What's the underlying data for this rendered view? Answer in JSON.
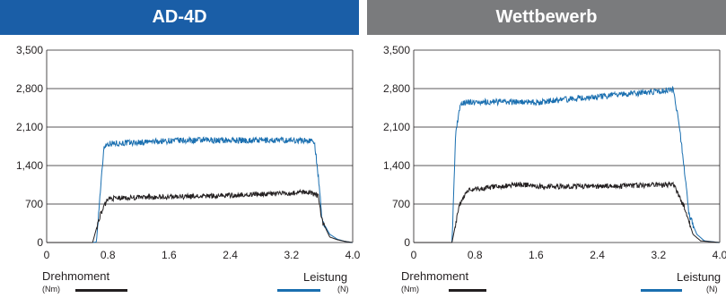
{
  "colors": {
    "left_header": "#1a5ea7",
    "right_header": "#7a7b7d",
    "torque": "#231f20",
    "force": "#1a6fb0",
    "grid": "#231f20"
  },
  "legend": {
    "torque_label": "Drehmoment",
    "torque_unit": "(Nm)",
    "force_label": "Leistung",
    "force_unit": "(N)"
  },
  "chart_data": [
    {
      "type": "line",
      "title": "AD-4D",
      "xlim": [
        0,
        4.0
      ],
      "ylim": [
        0,
        3500
      ],
      "x_ticks": [
        "0",
        "0.8",
        "1.6",
        "2.4",
        "3.2",
        "4.0"
      ],
      "y_ticks": [
        "0",
        "700",
        "1,400",
        "2,100",
        "2,800",
        "3,500"
      ],
      "grid": "horizontal",
      "series": [
        {
          "name": "Leistung",
          "unit": "(N)",
          "color": "#1a6fb0",
          "x": [
            0,
            0.6,
            0.65,
            0.7,
            0.75,
            0.8,
            1.2,
            1.6,
            2.0,
            2.4,
            2.8,
            3.2,
            3.5,
            3.55,
            3.6,
            3.7,
            3.8,
            3.9,
            4.0
          ],
          "y": [
            0,
            0,
            10,
            900,
            1750,
            1800,
            1820,
            1850,
            1860,
            1860,
            1860,
            1860,
            1850,
            1200,
            400,
            150,
            60,
            20,
            0
          ]
        },
        {
          "name": "Drehmoment",
          "unit": "(Nm)",
          "color": "#231f20",
          "x": [
            0,
            0.6,
            0.7,
            0.8,
            1.2,
            1.6,
            2.0,
            2.4,
            2.8,
            3.2,
            3.4,
            3.55,
            3.6,
            3.7,
            3.8,
            3.9,
            4.0
          ],
          "y": [
            0,
            0,
            500,
            800,
            820,
            830,
            840,
            860,
            880,
            900,
            920,
            860,
            400,
            100,
            50,
            20,
            0
          ]
        }
      ]
    },
    {
      "type": "line",
      "title": "Wettbewerb",
      "xlim": [
        0,
        4.0
      ],
      "ylim": [
        0,
        3500
      ],
      "x_ticks": [
        "0",
        "0.8",
        "1.6",
        "2.4",
        "3.2",
        "4.0"
      ],
      "y_ticks": [
        "0",
        "700",
        "1,400",
        "2,100",
        "2,800",
        "3,500"
      ],
      "grid": "horizontal",
      "series": [
        {
          "name": "Leistung",
          "unit": "(N)",
          "color": "#1a6fb0",
          "x": [
            0,
            0.5,
            0.55,
            0.6,
            0.65,
            0.7,
            1.0,
            1.6,
            2.0,
            2.4,
            2.8,
            3.2,
            3.4,
            3.5,
            3.6,
            3.7,
            3.8,
            4.0
          ],
          "y": [
            0,
            0,
            2000,
            2450,
            2550,
            2550,
            2560,
            2550,
            2600,
            2650,
            2700,
            2750,
            2780,
            1800,
            500,
            150,
            30,
            0
          ]
        },
        {
          "name": "Drehmoment",
          "unit": "(Nm)",
          "color": "#231f20",
          "x": [
            0,
            0.5,
            0.6,
            0.7,
            1.0,
            1.4,
            1.6,
            2.0,
            2.4,
            2.8,
            3.2,
            3.4,
            3.55,
            3.65,
            3.75,
            4.0
          ],
          "y": [
            0,
            0,
            700,
            950,
            1000,
            1060,
            1020,
            1020,
            1020,
            1030,
            1050,
            1050,
            600,
            150,
            30,
            0
          ]
        }
      ]
    }
  ]
}
